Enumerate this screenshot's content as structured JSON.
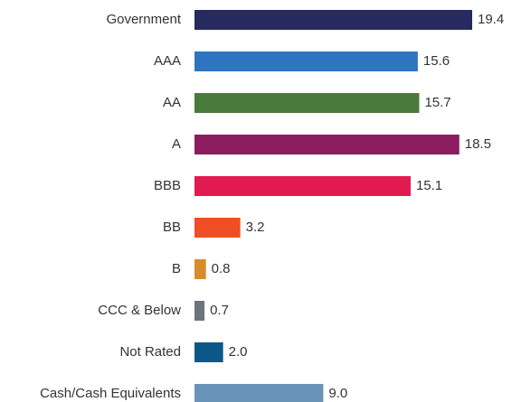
{
  "chart_data": {
    "type": "bar",
    "orientation": "horizontal",
    "categories": [
      "Government",
      "AAA",
      "AA",
      "A",
      "BBB",
      "BB",
      "B",
      "CCC & Below",
      "Not Rated",
      "Cash/Cash Equivalents"
    ],
    "values": [
      19.4,
      15.6,
      15.7,
      18.5,
      15.1,
      3.2,
      0.8,
      0.7,
      2.0,
      9.0
    ],
    "value_labels": [
      "19.4",
      "15.6",
      "15.7",
      "18.5",
      "15.1",
      "3.2",
      "0.8",
      "0.7",
      "2.0",
      "9.0"
    ],
    "colors": [
      "#262a5e",
      "#2f74c0",
      "#4a7a3c",
      "#8b1d5f",
      "#e11b50",
      "#f04e23",
      "#d98b2b",
      "#6d747c",
      "#0b5886",
      "#6a93b8"
    ]
  }
}
